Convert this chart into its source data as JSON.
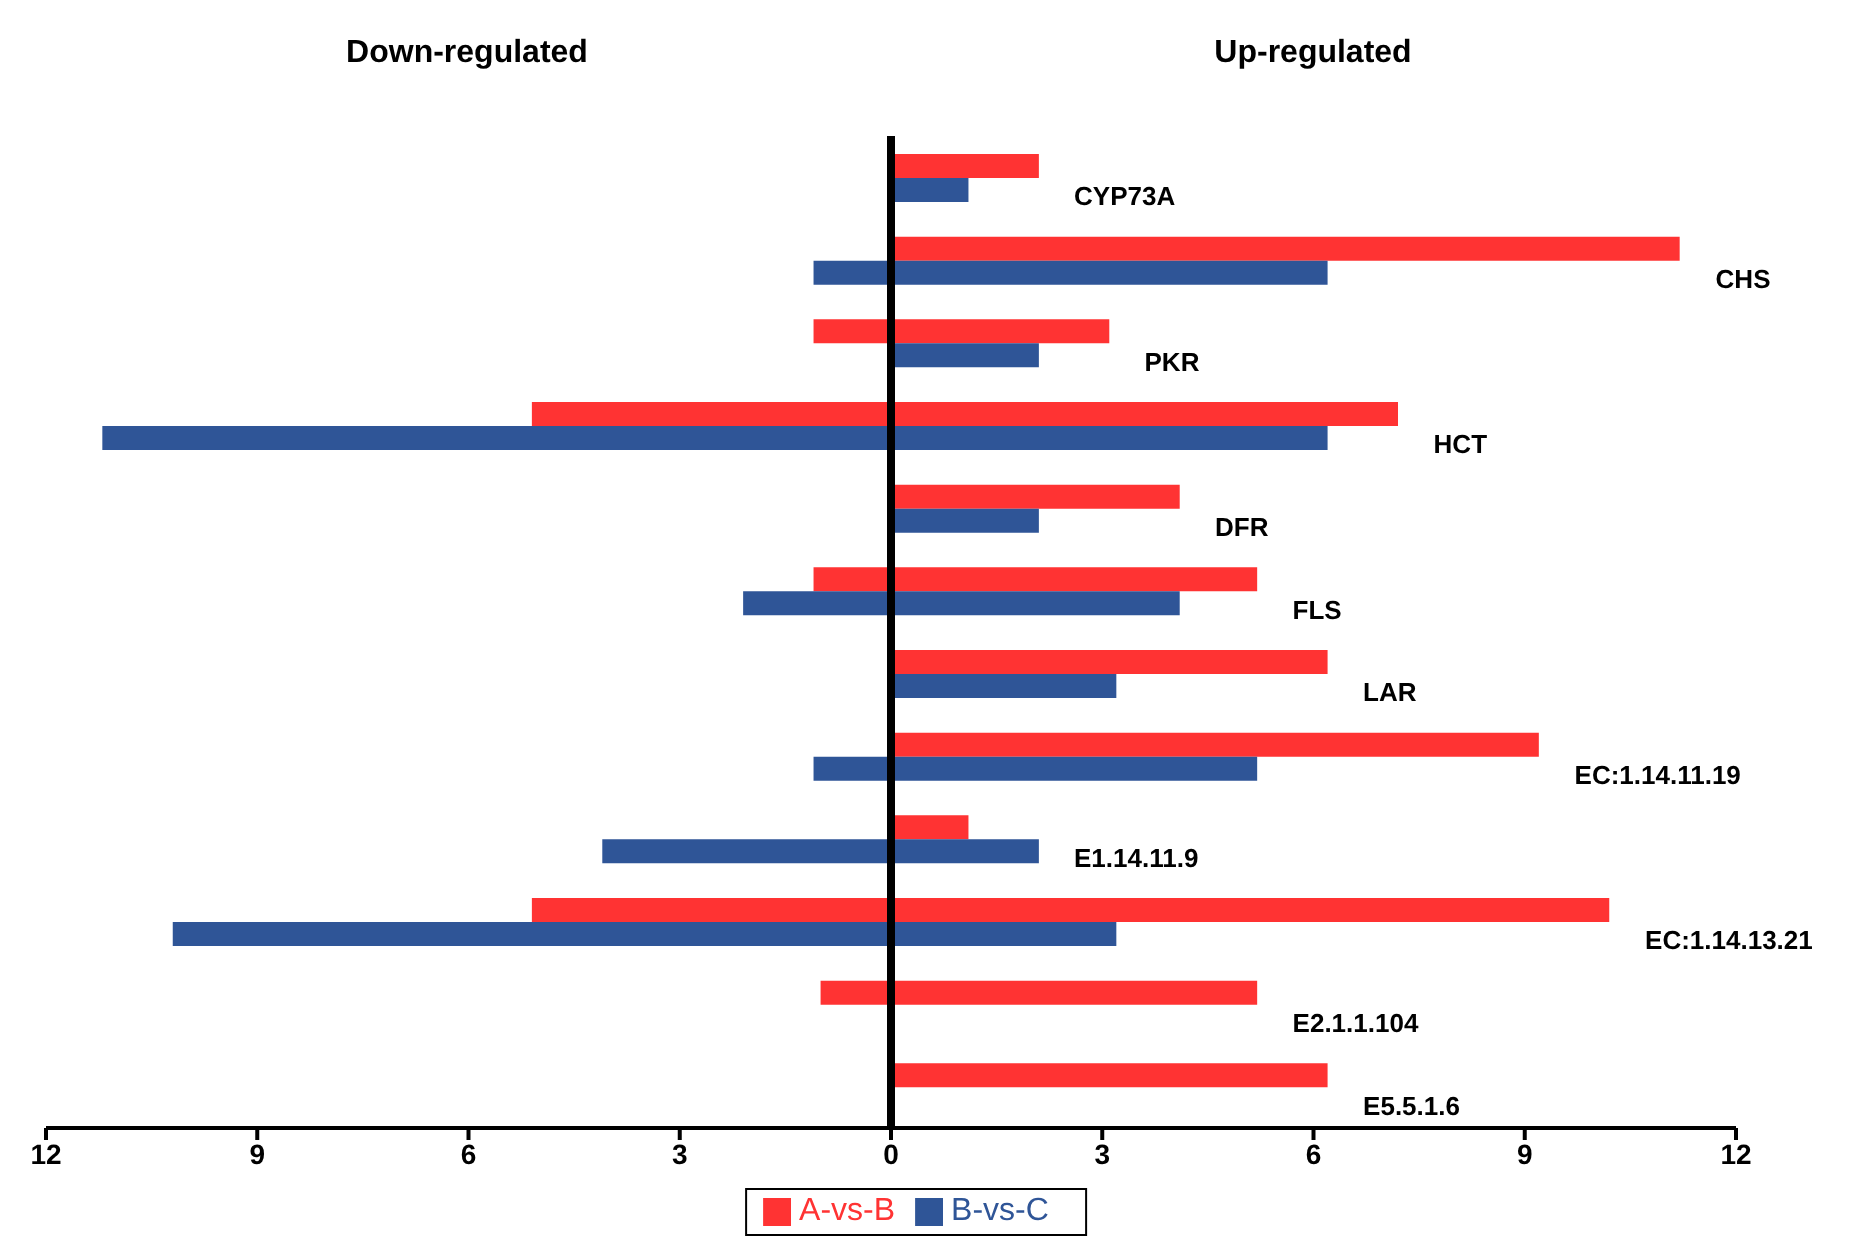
{
  "chart_data": {
    "type": "bar",
    "orientation": "horizontal",
    "categories": [
      "CYP73A",
      "CHS",
      "PKR",
      "HCT",
      "DFR",
      "FLS",
      "LAR",
      "EC:1.14.11.19",
      "E1.14.11.9",
      "EC:1.14.13.21",
      "E2.1.1.104",
      "E5.5.1.6"
    ],
    "series": [
      {
        "name": "A-vs-B",
        "color": "#ff3333",
        "base": [
          0,
          0,
          -1.1,
          -5.1,
          0,
          -1.1,
          0,
          0,
          0,
          -5.1,
          -1,
          0
        ],
        "values": [
          2.1,
          11.2,
          4.2,
          12.3,
          4.1,
          6.3,
          6.2,
          9.2,
          1.1,
          15.3,
          6.2,
          6.2
        ]
      },
      {
        "name": "B-vs-C",
        "color": "#2f5597",
        "base": [
          0,
          -1.1,
          0,
          -11.2,
          0,
          -2.1,
          0,
          -1.1,
          -4.1,
          -10.2,
          null,
          null
        ],
        "values": [
          1.1,
          7.3,
          2.1,
          17.4,
          2.1,
          6.2,
          3.2,
          6.3,
          6.2,
          13.4,
          null,
          null
        ]
      }
    ],
    "xlim": [
      -12,
      12
    ],
    "xticks": [
      {
        "value": -12,
        "label": "12"
      },
      {
        "value": -9,
        "label": "9"
      },
      {
        "value": -6,
        "label": "6"
      },
      {
        "value": -3,
        "label": "3"
      },
      0,
      3,
      6,
      9,
      12
    ],
    "ref_lines": [
      {
        "axis": "x",
        "value": 0,
        "color": "#000000"
      }
    ],
    "annotations": [
      "Down-regulated",
      "Up-regulated"
    ],
    "legend": "bottom"
  }
}
